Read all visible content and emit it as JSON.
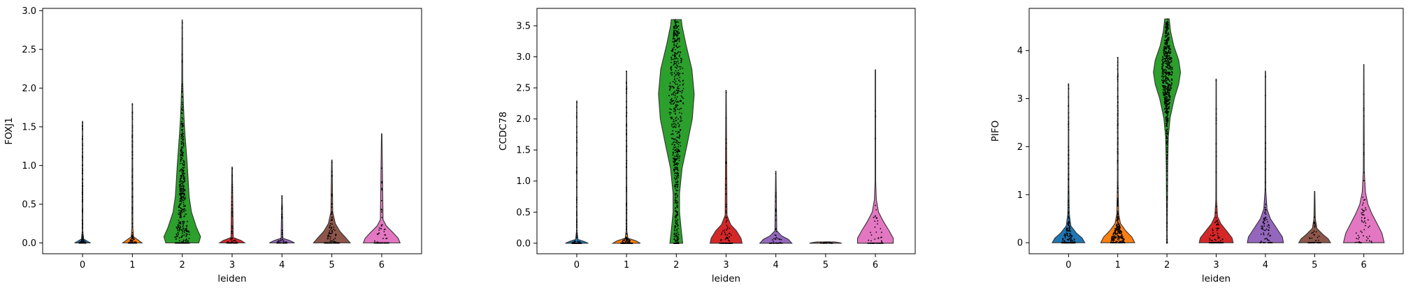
{
  "chart_data": [
    {
      "type": "violin",
      "xlabel": "leiden",
      "ylabel": "FOXJ1",
      "categories": [
        "0",
        "1",
        "2",
        "3",
        "4",
        "5",
        "6"
      ],
      "colors": [
        "#1f77b4",
        "#ff7f0e",
        "#2ca02c",
        "#d62728",
        "#9467bd",
        "#8c564b",
        "#e377c2"
      ],
      "ylim": [
        -0.14,
        3.03
      ],
      "yticks": [
        "0.0",
        "0.5",
        "1.0",
        "1.5",
        "2.0",
        "2.5",
        "3.0"
      ],
      "ytick_values": [
        0,
        0.5,
        1.0,
        1.5,
        2.0,
        2.5,
        3.0
      ],
      "max": [
        1.57,
        1.8,
        2.88,
        0.98,
        0.61,
        1.07,
        1.41
      ],
      "shape": [
        [
          [
            0,
            0.35
          ],
          [
            0.02,
            0.22
          ],
          [
            0.05,
            0.05
          ],
          [
            0.15,
            0.015
          ],
          [
            1.57,
            0.008
          ]
        ],
        [
          [
            0,
            0.42
          ],
          [
            0.03,
            0.28
          ],
          [
            0.08,
            0.05
          ],
          [
            0.2,
            0.02
          ],
          [
            1.8,
            0.008
          ]
        ],
        [
          [
            0,
            0.72
          ],
          [
            0.08,
            0.8
          ],
          [
            0.2,
            0.62
          ],
          [
            0.4,
            0.4
          ],
          [
            0.6,
            0.3
          ],
          [
            0.8,
            0.26
          ],
          [
            1.0,
            0.22
          ],
          [
            1.2,
            0.17
          ],
          [
            1.4,
            0.12
          ],
          [
            1.6,
            0.08
          ],
          [
            1.8,
            0.05
          ],
          [
            2.1,
            0.02
          ],
          [
            2.88,
            0.008
          ]
        ],
        [
          [
            0,
            0.55
          ],
          [
            0.03,
            0.4
          ],
          [
            0.07,
            0.05
          ],
          [
            0.98,
            0.008
          ]
        ],
        [
          [
            0,
            0.55
          ],
          [
            0.03,
            0.35
          ],
          [
            0.06,
            0.04
          ],
          [
            0.61,
            0.008
          ]
        ],
        [
          [
            0,
            0.8
          ],
          [
            0.07,
            0.6
          ],
          [
            0.15,
            0.35
          ],
          [
            0.25,
            0.15
          ],
          [
            0.4,
            0.04
          ],
          [
            1.07,
            0.01
          ]
        ],
        [
          [
            0,
            0.8
          ],
          [
            0.06,
            0.72
          ],
          [
            0.13,
            0.5
          ],
          [
            0.22,
            0.2
          ],
          [
            0.3,
            0.06
          ],
          [
            1.41,
            0.01
          ]
        ]
      ],
      "points": [
        200,
        200,
        600,
        100,
        60,
        140,
        100
      ]
    },
    {
      "type": "violin",
      "xlabel": "leiden",
      "ylabel": "CCDC78",
      "categories": [
        "0",
        "1",
        "2",
        "3",
        "4",
        "5",
        "6"
      ],
      "colors": [
        "#1f77b4",
        "#ff7f0e",
        "#2ca02c",
        "#d62728",
        "#9467bd",
        "#8c564b",
        "#e377c2"
      ],
      "ylim": [
        -0.17,
        3.78
      ],
      "yticks": [
        "0.0",
        "0.5",
        "1.0",
        "1.5",
        "2.0",
        "2.5",
        "3.0",
        "3.5"
      ],
      "ytick_values": [
        0,
        0.5,
        1.0,
        1.5,
        2.0,
        2.5,
        3.0,
        3.5
      ],
      "max": [
        2.29,
        2.77,
        3.6,
        2.46,
        1.16,
        0.02,
        2.79
      ],
      "shape": [
        [
          [
            0,
            0.5
          ],
          [
            0.03,
            0.3
          ],
          [
            0.06,
            0.05
          ],
          [
            0.2,
            0.012
          ],
          [
            2.29,
            0.008
          ]
        ],
        [
          [
            0,
            0.6
          ],
          [
            0.04,
            0.4
          ],
          [
            0.08,
            0.06
          ],
          [
            0.2,
            0.015
          ],
          [
            2.77,
            0.008
          ]
        ],
        [
          [
            0,
            0.28
          ],
          [
            0.2,
            0.22
          ],
          [
            0.5,
            0.14
          ],
          [
            0.8,
            0.14
          ],
          [
            1.2,
            0.25
          ],
          [
            1.6,
            0.48
          ],
          [
            2.0,
            0.7
          ],
          [
            2.4,
            0.78
          ],
          [
            2.8,
            0.68
          ],
          [
            3.2,
            0.42
          ],
          [
            3.5,
            0.25
          ],
          [
            3.6,
            0.22
          ]
        ],
        [
          [
            0,
            0.7
          ],
          [
            0.08,
            0.65
          ],
          [
            0.2,
            0.45
          ],
          [
            0.3,
            0.2
          ],
          [
            0.45,
            0.04
          ],
          [
            2.46,
            0.008
          ]
        ],
        [
          [
            0,
            0.7
          ],
          [
            0.06,
            0.55
          ],
          [
            0.12,
            0.25
          ],
          [
            0.2,
            0.04
          ],
          [
            1.16,
            0.008
          ]
        ],
        [
          [
            0,
            0.7
          ],
          [
            0.01,
            0.6
          ],
          [
            0.02,
            0.4
          ]
        ],
        [
          [
            0,
            0.78
          ],
          [
            0.08,
            0.78
          ],
          [
            0.2,
            0.6
          ],
          [
            0.35,
            0.35
          ],
          [
            0.5,
            0.14
          ],
          [
            0.7,
            0.04
          ],
          [
            1.0,
            0.015
          ],
          [
            2.79,
            0.01
          ]
        ]
      ],
      "points": [
        150,
        200,
        650,
        120,
        60,
        30,
        80
      ]
    },
    {
      "type": "violin",
      "xlabel": "leiden",
      "ylabel": "PIFO",
      "categories": [
        "0",
        "1",
        "2",
        "3",
        "4",
        "5",
        "6"
      ],
      "colors": [
        "#1f77b4",
        "#ff7f0e",
        "#2ca02c",
        "#d62728",
        "#9467bd",
        "#8c564b",
        "#e377c2"
      ],
      "ylim": [
        -0.23,
        4.88
      ],
      "yticks": [
        "0",
        "1",
        "2",
        "3",
        "4"
      ],
      "ytick_values": [
        0,
        1,
        2,
        3,
        4
      ],
      "max": [
        3.31,
        3.86,
        4.66,
        3.41,
        3.57,
        1.07,
        3.71
      ],
      "shape": [
        [
          [
            0,
            0.72
          ],
          [
            0.1,
            0.6
          ],
          [
            0.2,
            0.35
          ],
          [
            0.35,
            0.1
          ],
          [
            0.6,
            0.03
          ],
          [
            1.2,
            0.015
          ],
          [
            3.31,
            0.008
          ]
        ],
        [
          [
            0,
            0.75
          ],
          [
            0.12,
            0.62
          ],
          [
            0.25,
            0.35
          ],
          [
            0.4,
            0.12
          ],
          [
            0.6,
            0.04
          ],
          [
            1.2,
            0.015
          ],
          [
            3.86,
            0.008
          ]
        ],
        [
          [
            0,
            0.008
          ],
          [
            1.6,
            0.03
          ],
          [
            2.2,
            0.06
          ],
          [
            2.6,
            0.14
          ],
          [
            3.0,
            0.32
          ],
          [
            3.3,
            0.52
          ],
          [
            3.55,
            0.6
          ],
          [
            3.8,
            0.52
          ],
          [
            4.1,
            0.3
          ],
          [
            4.4,
            0.16
          ],
          [
            4.66,
            0.1
          ]
        ],
        [
          [
            0,
            0.75
          ],
          [
            0.1,
            0.7
          ],
          [
            0.25,
            0.45
          ],
          [
            0.4,
            0.2
          ],
          [
            0.55,
            0.06
          ],
          [
            0.9,
            0.015
          ],
          [
            3.41,
            0.008
          ]
        ],
        [
          [
            0,
            0.8
          ],
          [
            0.12,
            0.75
          ],
          [
            0.3,
            0.5
          ],
          [
            0.5,
            0.22
          ],
          [
            0.7,
            0.07
          ],
          [
            1.1,
            0.015
          ],
          [
            3.57,
            0.008
          ]
        ],
        [
          [
            0,
            0.7
          ],
          [
            0.08,
            0.6
          ],
          [
            0.18,
            0.35
          ],
          [
            0.3,
            0.1
          ],
          [
            0.5,
            0.03
          ],
          [
            1.07,
            0.01
          ]
        ],
        [
          [
            0,
            0.9
          ],
          [
            0.2,
            0.8
          ],
          [
            0.4,
            0.58
          ],
          [
            0.6,
            0.36
          ],
          [
            0.8,
            0.18
          ],
          [
            1.05,
            0.07
          ],
          [
            1.5,
            0.02
          ],
          [
            3.71,
            0.008
          ]
        ]
      ],
      "points": [
        300,
        300,
        700,
        120,
        80,
        60,
        60
      ]
    }
  ]
}
